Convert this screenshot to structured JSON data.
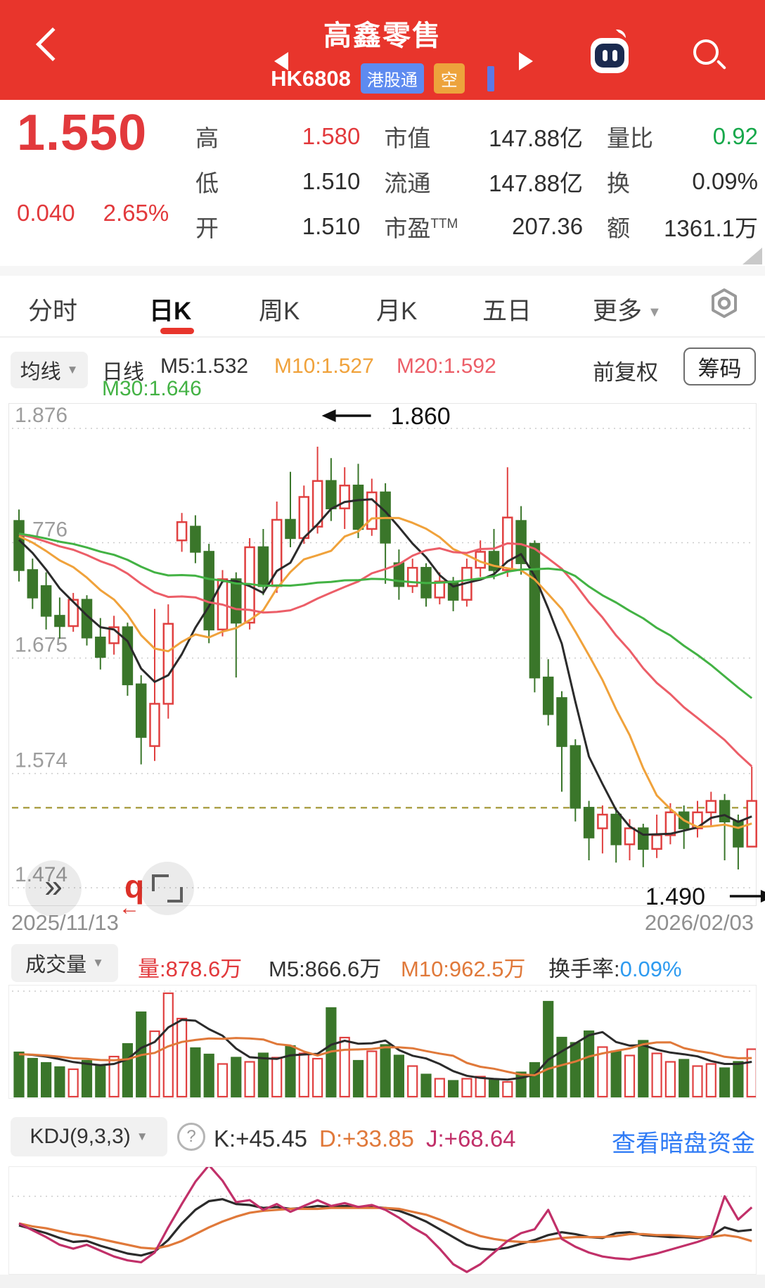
{
  "header": {
    "title": "高鑫零售",
    "code": "HK6808",
    "badge_connect": "港股通",
    "badge_short": "空"
  },
  "quote": {
    "price": "1.550",
    "change": "0.040",
    "change_pct": "2.65%",
    "r1c1_l": "高",
    "r1c1_v": "1.580",
    "r2c1_l": "低",
    "r2c1_v": "1.510",
    "r3c1_l": "开",
    "r3c1_v": "1.510",
    "r1c2_l": "市值",
    "r1c2_v": "147.88亿",
    "r2c2_l": "流通",
    "r2c2_v": "147.88亿",
    "r3c2_l": "市盈",
    "r3c2_sup": "TTM",
    "r3c2_v": "207.36",
    "r1c3_l": "量比",
    "r1c3_v": "0.92",
    "r2c3_l": "换",
    "r2c3_v": "0.09%",
    "r3c3_l": "额",
    "r3c3_v": "1361.1万"
  },
  "tabs": {
    "t1": "分时",
    "t2": "日K",
    "t3": "周K",
    "t4": "月K",
    "t5": "五日",
    "t6": "更多"
  },
  "legend": {
    "ma_button": "均线",
    "period": "日线",
    "m5": "M5:1.532",
    "m10": "M10:1.527",
    "m20": "M20:1.592",
    "m30": "M30:1.646",
    "adjust": "前复权",
    "chips": "筹码"
  },
  "icons": {
    "dropdown": "▼",
    "more": "»",
    "zoom_glyph": "q",
    "zoom_arrow": "←",
    "help": "?"
  },
  "dates": {
    "start": "2025/11/13",
    "end": "2026/02/03"
  },
  "volume_header": {
    "button": "成交量",
    "amount": "量:878.6万",
    "m5": "M5:866.6万",
    "m10": "M10:962.5万",
    "turnover_label": "换手率:",
    "turnover_value": "0.09%"
  },
  "kdj_header": {
    "button": "KDJ(9,3,3)",
    "k": "K:+45.45",
    "d": "D:+33.85",
    "j": "J:+68.64",
    "link": "查看暗盘资金"
  },
  "chart_data": {
    "type": "candlestick",
    "title": "高鑫零售 HK6808 日K",
    "x_range": [
      "2025/11/13",
      "2026/02/03"
    ],
    "y_axis_labels": [
      1.876,
      1.776,
      1.675,
      1.574,
      1.474
    ],
    "price_ref_line": 1.544,
    "high_annotation": {
      "label": "1.860",
      "index": 22
    },
    "low_annotation": {
      "label": "1.490",
      "index": 53
    },
    "ma_periods": [
      5,
      10,
      20,
      30
    ],
    "ma_seed": 1.785,
    "candles": [
      [
        1.795,
        1.805,
        1.742,
        1.752
      ],
      [
        1.752,
        1.762,
        1.718,
        1.728
      ],
      [
        1.738,
        1.75,
        1.7,
        1.712
      ],
      [
        1.712,
        1.728,
        1.692,
        1.703
      ],
      [
        1.703,
        1.732,
        1.698,
        1.726
      ],
      [
        1.726,
        1.73,
        1.686,
        1.693
      ],
      [
        1.693,
        1.71,
        1.665,
        1.676
      ],
      [
        1.688,
        1.712,
        1.678,
        1.702
      ],
      [
        1.702,
        1.706,
        1.642,
        1.652
      ],
      [
        1.652,
        1.66,
        1.582,
        1.606
      ],
      [
        1.598,
        1.718,
        1.585,
        1.635
      ],
      [
        1.635,
        1.722,
        1.622,
        1.705
      ],
      [
        1.778,
        1.802,
        1.768,
        1.794
      ],
      [
        1.79,
        1.8,
        1.758,
        1.768
      ],
      [
        1.768,
        1.775,
        1.688,
        1.7
      ],
      [
        1.7,
        1.752,
        1.694,
        1.744
      ],
      [
        1.744,
        1.75,
        1.658,
        1.706
      ],
      [
        1.706,
        1.78,
        1.7,
        1.772
      ],
      [
        1.772,
        1.788,
        1.73,
        1.738
      ],
      [
        1.738,
        1.812,
        1.732,
        1.796
      ],
      [
        1.796,
        1.838,
        1.772,
        1.78
      ],
      [
        1.78,
        1.826,
        1.775,
        1.816
      ],
      [
        1.79,
        1.86,
        1.784,
        1.83
      ],
      [
        1.83,
        1.85,
        1.795,
        1.806
      ],
      [
        1.806,
        1.842,
        1.788,
        1.826
      ],
      [
        1.826,
        1.845,
        1.78,
        1.788
      ],
      [
        1.788,
        1.832,
        1.782,
        1.82
      ],
      [
        1.82,
        1.828,
        1.74,
        1.776
      ],
      [
        1.758,
        1.77,
        1.726,
        1.738
      ],
      [
        1.738,
        1.762,
        1.732,
        1.754
      ],
      [
        1.754,
        1.758,
        1.72,
        1.728
      ],
      [
        1.728,
        1.75,
        1.722,
        1.742
      ],
      [
        1.742,
        1.746,
        1.716,
        1.726
      ],
      [
        1.726,
        1.762,
        1.72,
        1.754
      ],
      [
        1.754,
        1.778,
        1.746,
        1.768
      ],
      [
        1.768,
        1.788,
        1.744,
        1.752
      ],
      [
        1.752,
        1.842,
        1.746,
        1.798
      ],
      [
        1.795,
        1.808,
        1.748,
        1.758
      ],
      [
        1.775,
        1.778,
        1.645,
        1.658
      ],
      [
        1.658,
        1.674,
        1.616,
        1.626
      ],
      [
        1.64,
        1.646,
        1.558,
        1.598
      ],
      [
        1.598,
        1.604,
        1.532,
        1.544
      ],
      [
        1.544,
        1.55,
        1.498,
        1.518
      ],
      [
        1.526,
        1.546,
        1.504,
        1.538
      ],
      [
        1.538,
        1.544,
        1.496,
        1.512
      ],
      [
        1.512,
        1.534,
        1.498,
        1.526
      ],
      [
        1.526,
        1.53,
        1.492,
        1.508
      ],
      [
        1.508,
        1.538,
        1.5,
        1.52
      ],
      [
        1.52,
        1.548,
        1.512,
        1.54
      ],
      [
        1.54,
        1.546,
        1.508,
        1.526
      ],
      [
        1.526,
        1.55,
        1.518,
        1.54
      ],
      [
        1.54,
        1.558,
        1.528,
        1.55
      ],
      [
        1.55,
        1.556,
        1.498,
        1.532
      ],
      [
        1.532,
        1.538,
        1.49,
        1.51
      ],
      [
        1.51,
        1.58,
        1.51,
        1.55
      ]
    ],
    "volumes": [
      42,
      36,
      32,
      28,
      26,
      34,
      29,
      38,
      50,
      80,
      62,
      98,
      74,
      46,
      40,
      31,
      37,
      33,
      41,
      37,
      48,
      41,
      36,
      84,
      56,
      34,
      43,
      49,
      39,
      29,
      21,
      17,
      15,
      17,
      19,
      16,
      14,
      23,
      32,
      90,
      56,
      51,
      62,
      47,
      43,
      39,
      53,
      41,
      33,
      35,
      29,
      31,
      27,
      33,
      45
    ],
    "volume_ma_periods": [
      5,
      10
    ],
    "kdj": {
      "gridline": 80,
      "k": [
        50,
        46,
        42,
        37,
        33,
        34,
        29,
        25,
        21,
        19,
        23,
        35,
        52,
        66,
        75,
        77,
        72,
        71,
        68,
        69,
        67,
        68,
        70,
        69,
        70,
        69,
        69,
        68,
        65,
        60,
        54,
        46,
        38,
        30,
        26,
        25,
        27,
        31,
        35,
        40,
        43,
        41,
        38,
        37,
        42,
        43,
        40,
        39,
        38,
        38,
        37,
        39,
        48,
        44,
        45.45
      ],
      "d": [
        52,
        49,
        47,
        44,
        41,
        39,
        36,
        33,
        30,
        27,
        26,
        29,
        34,
        41,
        48,
        54,
        59,
        63,
        65,
        66,
        67,
        67,
        67,
        68,
        68,
        68,
        68,
        68,
        67,
        64,
        61,
        56,
        50,
        44,
        39,
        36,
        34,
        33,
        33,
        35,
        37,
        38,
        38,
        38,
        39,
        41,
        41,
        40,
        40,
        39,
        38,
        38,
        40,
        38,
        33.85
      ],
      "j": [
        52,
        45,
        38,
        30,
        26,
        30,
        24,
        18,
        14,
        12,
        22,
        48,
        72,
        95,
        112,
        96,
        74,
        76,
        66,
        72,
        64,
        70,
        76,
        70,
        73,
        69,
        71,
        66,
        58,
        48,
        40,
        26,
        10,
        2,
        10,
        22,
        34,
        42,
        46,
        66,
        36,
        28,
        22,
        18,
        16,
        15,
        18,
        21,
        25,
        29,
        33,
        38,
        80,
        56,
        68.64
      ]
    },
    "colors": {
      "up": "#E04040",
      "down": "#3A762A",
      "ma5": "#2B2B2B",
      "ma10": "#F0A23B",
      "ma20": "#EC5E68",
      "ma30": "#43B244",
      "vol_ma5": "#2B2B2B",
      "vol_ma10": "#E0793A",
      "k": "#2B2B2B",
      "d": "#E0793A",
      "j": "#C13069",
      "ref_dash": "#ADA24A",
      "grid": "#CCCCCC",
      "axis_text": "#9C9C9C",
      "annotation": "#111111"
    }
  }
}
